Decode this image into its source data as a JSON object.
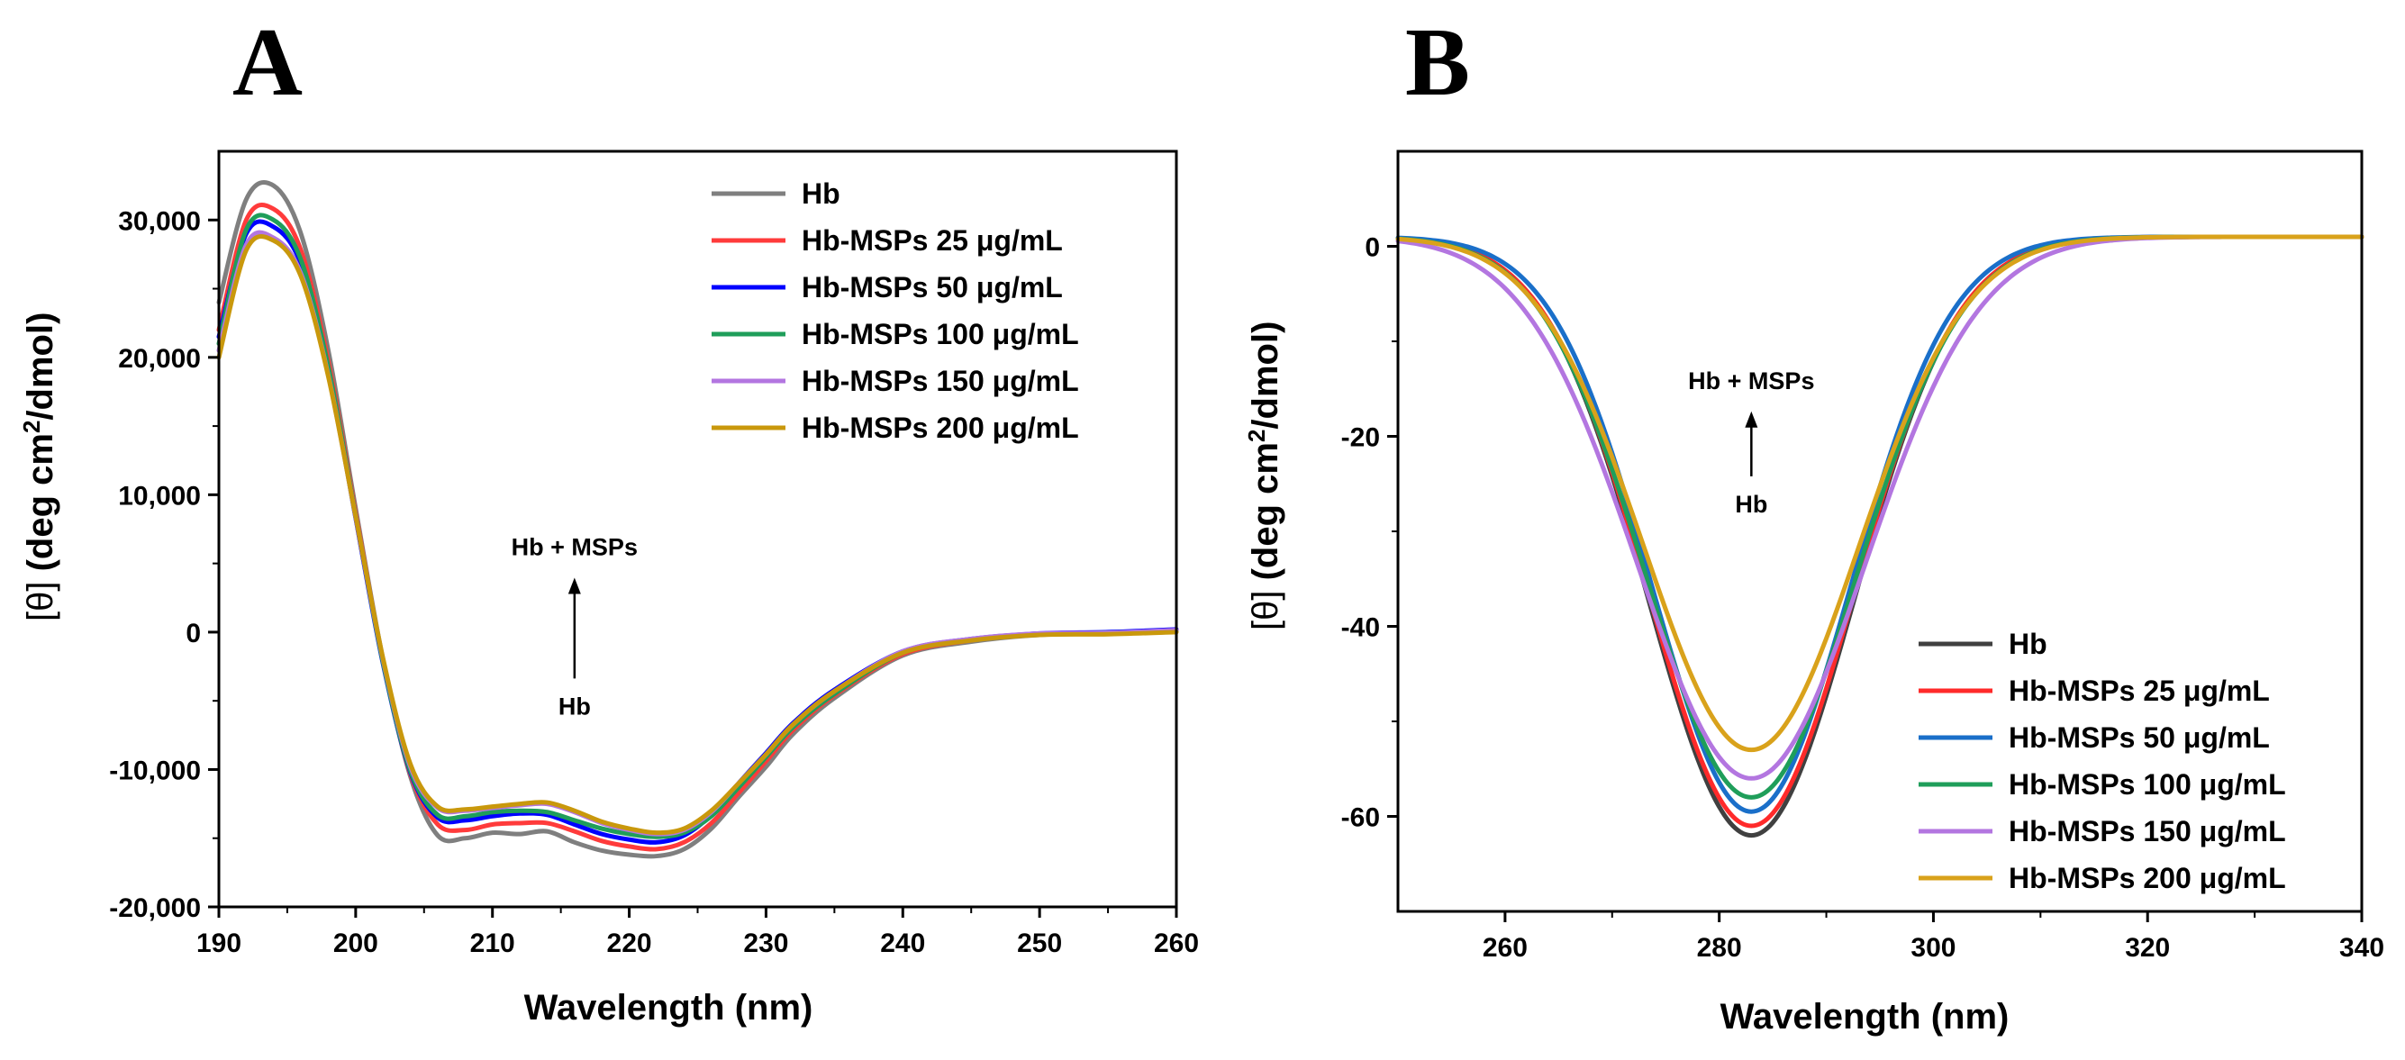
{
  "chart_data": [
    {
      "panel": "A",
      "type": "line",
      "xlabel": "Wavelength (nm)",
      "ylabel": "[θ] (deg cm²/dmol)",
      "ylabel_parts": {
        "bracket": "[θ]",
        "main": " (deg cm",
        "sup": "2",
        "tail": "/dmol)"
      },
      "xlim": [
        190,
        260
      ],
      "ylim": [
        -20000,
        35000
      ],
      "xticks": [
        190,
        200,
        210,
        220,
        230,
        240,
        250,
        260
      ],
      "xtick_labels": [
        "190",
        "200",
        "210",
        "220",
        "230",
        "240",
        "250",
        "260"
      ],
      "yticks": [
        -20000,
        -10000,
        0,
        10000,
        20000,
        30000
      ],
      "ytick_labels": [
        "-20,000",
        "-10,000",
        "0",
        "10,000",
        "20,000",
        "30,000"
      ],
      "legend_position": "top-right",
      "annotation": {
        "top": "Hb + MSPs",
        "bottom": "Hb",
        "x": 216,
        "y_top": 5600,
        "y_bottom": -6000
      },
      "series": [
        {
          "name": "Hb",
          "color": "#7f7f7f",
          "x": [
            190,
            192,
            194,
            196,
            198,
            200,
            202,
            204,
            206,
            208,
            210,
            212,
            214,
            216,
            218,
            220,
            222,
            224,
            226,
            228,
            230,
            232,
            235,
            240,
            245,
            250,
            255,
            260
          ],
          "y": [
            24000,
            31500,
            32500,
            29000,
            20500,
            9000,
            -2000,
            -10500,
            -14800,
            -15000,
            -14600,
            -14700,
            -14500,
            -15300,
            -15900,
            -16200,
            -16300,
            -15800,
            -14300,
            -12000,
            -9800,
            -7400,
            -4800,
            -1700,
            -700,
            -200,
            -100,
            100
          ]
        },
        {
          "name": "Hb-MSPs 25 μg/mL",
          "color": "#ff3b3b",
          "x": [
            190,
            192,
            194,
            196,
            198,
            200,
            202,
            204,
            206,
            208,
            210,
            212,
            214,
            216,
            218,
            220,
            222,
            224,
            226,
            228,
            230,
            232,
            235,
            240,
            245,
            250,
            255,
            260
          ],
          "y": [
            22000,
            30000,
            30800,
            27800,
            19700,
            8700,
            -2100,
            -10300,
            -14000,
            -14400,
            -14000,
            -13900,
            -13900,
            -14500,
            -15200,
            -15600,
            -15800,
            -15300,
            -13900,
            -11700,
            -9400,
            -7100,
            -4600,
            -1600,
            -600,
            -150,
            -50,
            150
          ]
        },
        {
          "name": "Hb-MSPs 50 μg/mL",
          "color": "#0000ff",
          "x": [
            190,
            192,
            194,
            196,
            198,
            200,
            202,
            204,
            206,
            208,
            210,
            212,
            214,
            216,
            218,
            220,
            222,
            224,
            226,
            228,
            230,
            232,
            235,
            240,
            245,
            250,
            255,
            260
          ],
          "y": [
            21500,
            29000,
            29500,
            26800,
            19100,
            8300,
            -2300,
            -10200,
            -13500,
            -13700,
            -13400,
            -13200,
            -13300,
            -14000,
            -14700,
            -15100,
            -15300,
            -14800,
            -13300,
            -11000,
            -8800,
            -6600,
            -4200,
            -1400,
            -500,
            -100,
            0,
            200
          ]
        },
        {
          "name": "Hb-MSPs 100 μg/mL",
          "color": "#1f9e5a",
          "x": [
            190,
            192,
            194,
            196,
            198,
            200,
            202,
            204,
            206,
            208,
            210,
            212,
            214,
            216,
            218,
            220,
            222,
            224,
            226,
            228,
            230,
            232,
            235,
            240,
            245,
            250,
            255,
            260
          ],
          "y": [
            21000,
            29300,
            30000,
            27100,
            19300,
            8500,
            -2200,
            -10100,
            -13300,
            -13400,
            -13100,
            -13000,
            -13100,
            -13700,
            -14300,
            -14700,
            -14900,
            -14600,
            -13400,
            -11300,
            -9100,
            -6900,
            -4500,
            -1500,
            -550,
            -150,
            -50,
            100
          ]
        },
        {
          "name": "Hb-MSPs 150 μg/mL",
          "color": "#b376e0",
          "x": [
            190,
            192,
            194,
            196,
            198,
            200,
            202,
            204,
            206,
            208,
            210,
            212,
            214,
            216,
            218,
            220,
            222,
            224,
            226,
            228,
            230,
            232,
            235,
            240,
            245,
            250,
            255,
            260
          ],
          "y": [
            20500,
            28200,
            28700,
            26100,
            18700,
            8400,
            -2000,
            -9800,
            -12800,
            -13000,
            -12800,
            -12600,
            -12500,
            -13100,
            -13900,
            -14400,
            -14700,
            -14400,
            -13100,
            -11000,
            -8900,
            -6700,
            -4300,
            -1400,
            -500,
            -100,
            -50,
            150
          ]
        },
        {
          "name": "Hb-MSPs 200 μg/mL",
          "color": "#c9980c",
          "x": [
            190,
            192,
            194,
            196,
            198,
            200,
            202,
            204,
            206,
            208,
            210,
            212,
            214,
            216,
            218,
            220,
            222,
            224,
            226,
            228,
            230,
            232,
            235,
            240,
            245,
            250,
            255,
            260
          ],
          "y": [
            20000,
            27800,
            28500,
            25900,
            18600,
            8400,
            -1900,
            -9600,
            -12700,
            -12900,
            -12700,
            -12500,
            -12400,
            -13000,
            -13800,
            -14300,
            -14600,
            -14300,
            -13000,
            -11000,
            -8900,
            -6700,
            -4300,
            -1500,
            -600,
            -200,
            -150,
            0
          ]
        }
      ]
    },
    {
      "panel": "B",
      "type": "line",
      "xlabel": "Wavelength (nm)",
      "ylabel": "[θ] (deg cm²/dmol)",
      "ylabel_parts": {
        "bracket": "[θ]",
        "main": " (deg cm",
        "sup": "2",
        "tail": "/dmol)"
      },
      "xlim": [
        250,
        340
      ],
      "ylim": [
        -70,
        10
      ],
      "xticks": [
        260,
        280,
        300,
        320,
        340
      ],
      "xtick_labels": [
        "260",
        "280",
        "300",
        "320",
        "340"
      ],
      "yticks": [
        -60,
        -40,
        -20,
        0
      ],
      "ytick_labels": [
        "-60",
        "-40",
        "-20",
        "0"
      ],
      "legend_position": "bottom-right",
      "annotation": {
        "top": "Hb + MSPs",
        "bottom": "Hb",
        "x": 283,
        "y_top": -15,
        "y_bottom": -28
      },
      "peak": {
        "center": 283,
        "baseline_left": 1,
        "baseline_right": 1
      },
      "series": [
        {
          "name": "Hb",
          "color": "#404040",
          "min": -62,
          "width": 9.6
        },
        {
          "name": "Hb-MSPs 25 μg/mL",
          "color": "#ff2a2a",
          "min": -61,
          "width": 9.6
        },
        {
          "name": "Hb-MSPs 50 μg/mL",
          "color": "#1a6fc9",
          "min": -59.5,
          "width": 9.3
        },
        {
          "name": "Hb-MSPs 100 μg/mL",
          "color": "#1f9e5a",
          "min": -58,
          "width": 9.8
        },
        {
          "name": "Hb-MSPs 150 μg/mL",
          "color": "#b376e0",
          "min": -56,
          "width": 10.6
        },
        {
          "name": "Hb-MSPs 200 μg/mL",
          "color": "#d9a21b",
          "min": -53,
          "width": 10.0
        }
      ]
    }
  ]
}
